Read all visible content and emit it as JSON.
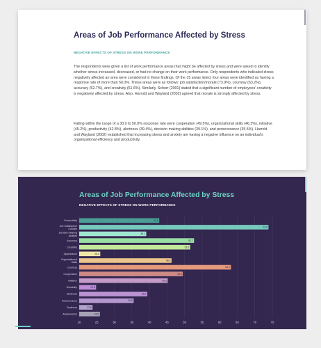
{
  "summary_card": {
    "title": "Areas of Job Performance Affected by Stress",
    "subtitle": "NEGATIVE EFFECTS OF STRESS ON WORK PERFORMANCE",
    "paragraph_1": "The respondents were given a list of work performance areas that might be affected by stress and were asked to identify whether stress increased, decreased, or had no change on their work performance. Only respondents who indicated stress negatively affected an area were considered in these findings. Of the 15 areas listed, four areas were identified as having a response rate of more than 50.0%. These areas were as follows: job satisfaction/morale (73.9%), courtesy (63.2%), accuracy (52.7%), and creativity (51.6%). Similarly, Schorr (2001) stated that a significant number of employees' creativity is negatively affected by stress. Also, Harrold and Wayland (2002) agreed that morale is strongly affected by stress.",
    "paragraph_2": "Falling within the range of a 30.0 to 50.0% response rate were cooperation (49.5%), organizational skills (46.3%), initiative (45.2%), productivity (42.8%), alertness (39.4%), decision making abilities (39.1%), and perseverance (35.5%). Harrold and Wayland (2002) established that increasing stress and anxiety are having a negative influence on an individual's organizational efficiency and productivity."
  },
  "chart_panel": {
    "title": "Areas of Job Performance Affected by Stress",
    "subtitle": "NEGATIVE EFFECTS OF STRESS ON WORK PERFORMANCE"
  },
  "chart_data": {
    "type": "bar",
    "orientation": "horizontal",
    "categories": [
      "Productivity",
      "Job Satisfaction / Morale",
      "Decision Making Abilities",
      "Accuracy",
      "Creativity",
      "Appearance",
      "Organizational Skills",
      "Courtesy",
      "Cooperation",
      "Initiative",
      "Reliability",
      "Alertness",
      "Perseverance",
      "Tardiness",
      "Absenteeism"
    ],
    "values": [
      42.8,
      73.9,
      39.1,
      52.7,
      51.6,
      26.0,
      46.3,
      63.2,
      49.5,
      45.2,
      24.8,
      39.4,
      35.5,
      23.8,
      25.9
    ],
    "colors": [
      "#4a9e95",
      "#76c8bd",
      "#a0e5d0",
      "#99dfa3",
      "#c2e89a",
      "#ede6a6",
      "#ebc58b",
      "#e59a7c",
      "#cf8a86",
      "#c59cc8",
      "#bf8ed8",
      "#bb93d3",
      "#b497cd",
      "#b3a2cf",
      "#a6a2b6"
    ],
    "xlim": [
      20,
      75
    ],
    "xticks": [
      20,
      25,
      30,
      35,
      40,
      45,
      50,
      55,
      60,
      65,
      70,
      75
    ],
    "grid": true
  }
}
